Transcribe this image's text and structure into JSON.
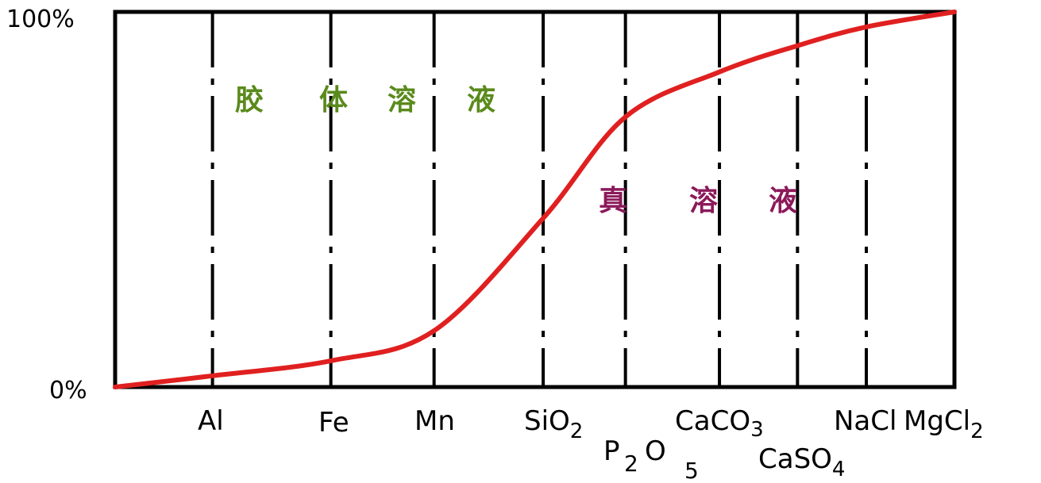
{
  "diagram": {
    "y_axis": {
      "top_label": "100%",
      "bottom_label": "0%"
    },
    "elements": [
      {
        "id": "al",
        "label": "Al",
        "position": 0.116,
        "fraction": 0.03
      },
      {
        "id": "fe",
        "label": "Fe",
        "position": 0.257,
        "fraction": 0.07
      },
      {
        "id": "mn",
        "label": "Mn",
        "position": 0.38,
        "fraction": 0.15
      },
      {
        "id": "sio2",
        "base": "SiO",
        "sub": "2",
        "position": 0.51,
        "fraction": 0.45
      },
      {
        "id": "p2o5",
        "p1": "P",
        "s1": "2",
        "p2": "O",
        "s2": "5",
        "position": 0.608,
        "fraction": 0.72
      },
      {
        "id": "caco3",
        "base": "CaCO",
        "sub": "3",
        "position": 0.72,
        "fraction": 0.84
      },
      {
        "id": "caso4",
        "base": "CaSO",
        "sub": "4",
        "position": 0.813,
        "fraction": 0.91
      },
      {
        "id": "nacl",
        "label": "NaCl",
        "position": 0.895,
        "fraction": 0.96
      },
      {
        "id": "mgcl2",
        "base": "MgCl",
        "sub": "2",
        "position": 1.0,
        "fraction": 1.0
      }
    ],
    "regions": {
      "colloid": {
        "chars": [
          "胶",
          "体",
          "溶",
          "液"
        ],
        "color": "#5a8a1c"
      },
      "true_solution": {
        "chars": [
          "真",
          "溶",
          "液"
        ],
        "color": "#8b1a5a"
      }
    },
    "curve_color": "#e02020",
    "background": "#ffffff",
    "frame_color": "#000000"
  }
}
